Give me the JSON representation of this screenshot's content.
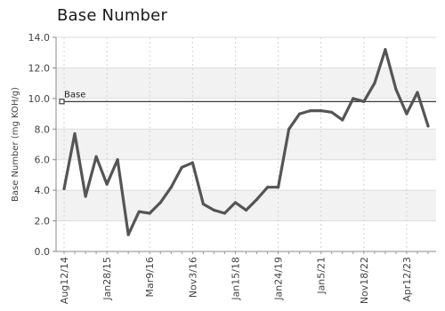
{
  "chart_data": {
    "type": "line",
    "title": "Base Number",
    "xlabel": "",
    "ylabel": "Base Number (mg KOH/g)",
    "ylim": [
      0,
      14
    ],
    "yticks": [
      0,
      2,
      4,
      6,
      8,
      10,
      12,
      14
    ],
    "y_tick_labels": [
      "0.0",
      "2.0",
      "4.0",
      "6.0",
      "8.0",
      "10.0",
      "12.0",
      "14.0"
    ],
    "x_tick_labels": [
      "Aug12/14",
      "Jan28/15",
      "Mar9/16",
      "Nov3/16",
      "Jan15/18",
      "Jan24/19",
      "Jan5/21",
      "Nov18/22",
      "Apr12/23"
    ],
    "x_tick_indices": [
      0,
      4,
      8,
      12,
      16,
      20,
      24,
      28,
      32
    ],
    "grid": "horizontal bands",
    "series": [
      {
        "values": [
          4.1,
          7.7,
          3.6,
          6.2,
          4.4,
          6.0,
          1.1,
          2.6,
          2.5,
          3.2,
          4.2,
          5.5,
          5.8,
          3.1,
          2.7,
          2.5,
          3.2,
          2.7,
          3.4,
          4.2,
          4.2,
          8.0,
          9.0,
          9.2,
          9.2,
          9.1,
          8.6,
          10.0,
          9.8,
          11.0,
          13.2,
          10.6,
          9.0,
          10.4,
          8.2
        ],
        "color": "#555555"
      }
    ],
    "reference_line": {
      "label": "Base",
      "value": 9.8,
      "color": "#222222"
    }
  }
}
